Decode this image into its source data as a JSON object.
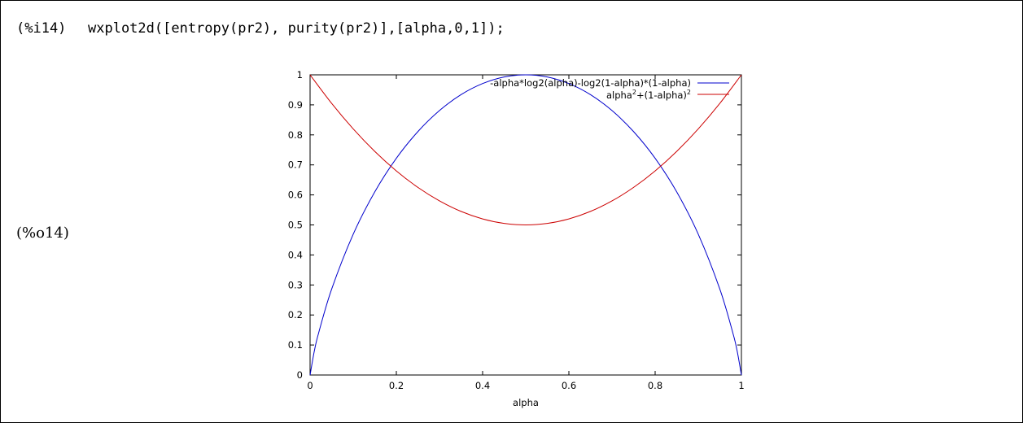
{
  "cell": {
    "input_label": "(%i14)",
    "input_code": "wxplot2d([entropy(pr2), purity(pr2)],[alpha,0,1]);",
    "output_label": "(%o14)"
  },
  "chart_data": {
    "type": "line",
    "xlabel": "alpha",
    "ylabel": "",
    "xlim": [
      0,
      1
    ],
    "ylim": [
      0,
      1
    ],
    "x_ticks": [
      "0",
      "0.2",
      "0.4",
      "0.6",
      "0.8",
      "1"
    ],
    "y_ticks": [
      "0",
      "0.1",
      "0.2",
      "0.3",
      "0.4",
      "0.5",
      "0.6",
      "0.7",
      "0.8",
      "0.9",
      "1"
    ],
    "grid": false,
    "legend_position": "top-right",
    "series": [
      {
        "name": "-alpha*log2(alpha)-log2(1-alpha)*(1-alpha)",
        "color": "#0000cc",
        "x": [
          0,
          0.01,
          0.02,
          0.05,
          0.1,
          0.15,
          0.2,
          0.25,
          0.3,
          0.35,
          0.4,
          0.45,
          0.5,
          0.55,
          0.6,
          0.65,
          0.7,
          0.75,
          0.8,
          0.85,
          0.9,
          0.95,
          0.98,
          0.99,
          1
        ],
        "y": [
          0,
          0.081,
          0.141,
          0.286,
          0.469,
          0.61,
          0.722,
          0.811,
          0.881,
          0.934,
          0.971,
          0.993,
          1,
          0.993,
          0.971,
          0.934,
          0.881,
          0.811,
          0.722,
          0.61,
          0.469,
          0.286,
          0.141,
          0.081,
          0
        ]
      },
      {
        "name_base": "alpha",
        "name_sup1": "2",
        "name_mid": "+(1-alpha)",
        "name_sup2": "2",
        "color": "#cc0000",
        "x": [
          0,
          0.05,
          0.1,
          0.15,
          0.2,
          0.25,
          0.3,
          0.35,
          0.4,
          0.45,
          0.5,
          0.55,
          0.6,
          0.65,
          0.7,
          0.75,
          0.8,
          0.85,
          0.9,
          0.95,
          1
        ],
        "y": [
          1,
          0.905,
          0.82,
          0.745,
          0.68,
          0.625,
          0.58,
          0.545,
          0.52,
          0.505,
          0.5,
          0.505,
          0.52,
          0.545,
          0.58,
          0.625,
          0.68,
          0.745,
          0.82,
          0.905,
          1
        ]
      }
    ]
  }
}
